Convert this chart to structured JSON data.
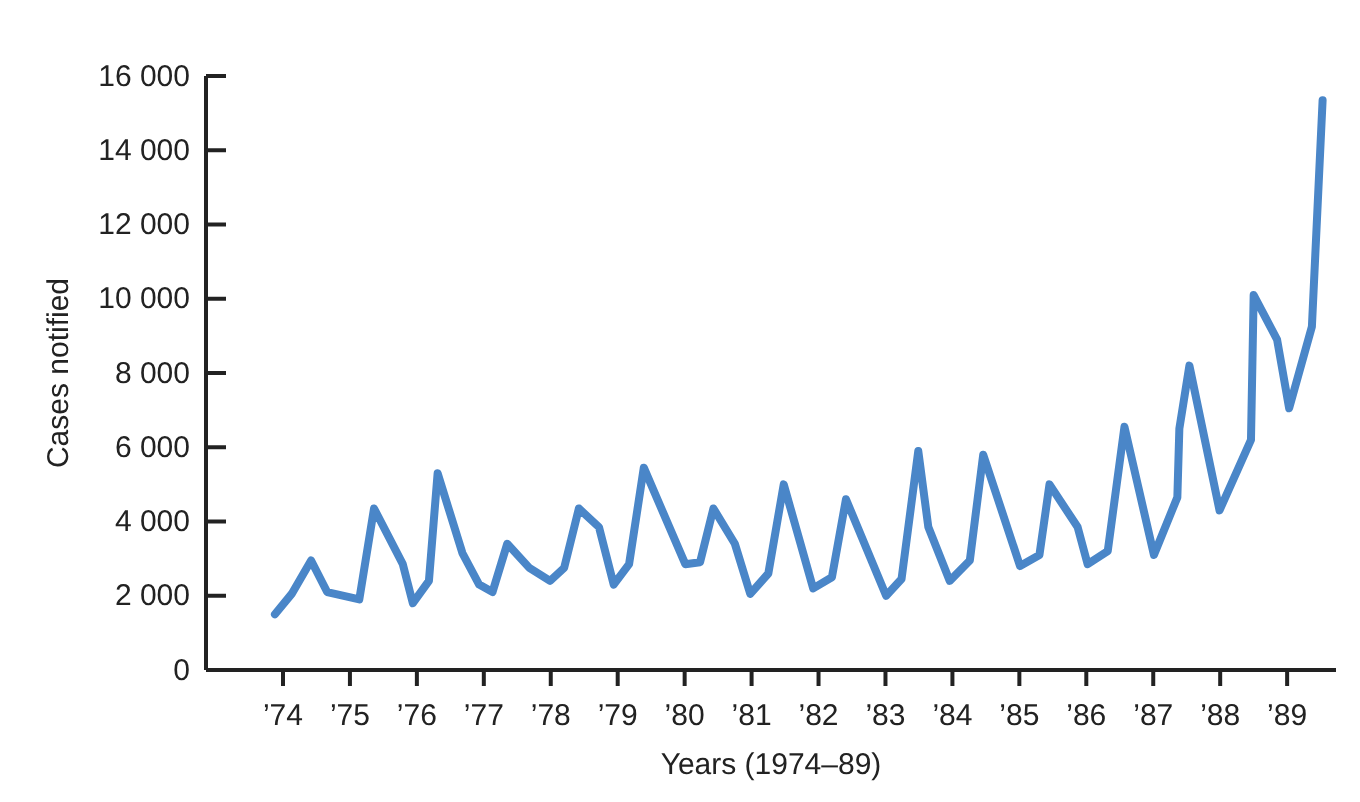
{
  "chart_data": {
    "type": "line",
    "xlabel": "Years (1974–89)",
    "ylabel": "Cases notified",
    "x": [
      1973.88,
      1974.13,
      1974.42,
      1974.66,
      1975.14,
      1975.36,
      1975.79,
      1975.94,
      1976.18,
      1976.31,
      1976.68,
      1976.93,
      1977.13,
      1977.35,
      1977.68,
      1977.99,
      1978.2,
      1978.42,
      1978.72,
      1978.94,
      1979.17,
      1979.39,
      1980.01,
      1980.23,
      1980.43,
      1980.75,
      1980.98,
      1981.25,
      1981.48,
      1981.92,
      1982.2,
      1982.41,
      1983.01,
      1983.24,
      1983.49,
      1983.64,
      1983.96,
      1984.26,
      1984.46,
      1985.01,
      1985.3,
      1985.45,
      1985.87,
      1986.02,
      1986.32,
      1986.57,
      1987.01,
      1987.36,
      1987.39,
      1987.54,
      1987.99,
      1988.46,
      1988.5,
      1988.85,
      1989.03,
      1989.37,
      1989.53
    ],
    "series": [
      {
        "color": "#4a86c8",
        "values": [
          1500,
          2050,
          2950,
          2100,
          1900,
          4350,
          2850,
          1800,
          2400,
          5300,
          3150,
          2300,
          2100,
          3400,
          2750,
          2400,
          2750,
          4350,
          3850,
          2300,
          2850,
          5450,
          2850,
          2900,
          4350,
          3400,
          2050,
          2600,
          5000,
          2200,
          2500,
          4600,
          2000,
          2450,
          5900,
          3850,
          2400,
          2950,
          5800,
          2800,
          3100,
          5000,
          3850,
          2850,
          3200,
          6550,
          3100,
          4650,
          6500,
          8200,
          4300,
          6200,
          10100,
          8900,
          7050,
          9250,
          15350
        ]
      }
    ],
    "xlim": [
      1972.85,
      1989.73
    ],
    "ylim": [
      0,
      16000
    ],
    "xticks": [
      {
        "value": 1974,
        "label": "’74"
      },
      {
        "value": 1975,
        "label": "’75"
      },
      {
        "value": 1976,
        "label": "’76"
      },
      {
        "value": 1977,
        "label": "’77"
      },
      {
        "value": 1978,
        "label": "’78"
      },
      {
        "value": 1979,
        "label": "’79"
      },
      {
        "value": 1980,
        "label": "’80"
      },
      {
        "value": 1981,
        "label": "’81"
      },
      {
        "value": 1982,
        "label": "’82"
      },
      {
        "value": 1983,
        "label": "’83"
      },
      {
        "value": 1984,
        "label": "’84"
      },
      {
        "value": 1985,
        "label": "’85"
      },
      {
        "value": 1986,
        "label": "’86"
      },
      {
        "value": 1987,
        "label": "’87"
      },
      {
        "value": 1988,
        "label": "’88"
      },
      {
        "value": 1989,
        "label": "’89"
      }
    ],
    "yticks": [
      0,
      {
        "value": 2000,
        "label": "2 000"
      },
      {
        "value": 4000,
        "label": "4 000"
      },
      {
        "value": 6000,
        "label": "6 000"
      },
      {
        "value": 8000,
        "label": "8 000"
      },
      {
        "value": 10000,
        "label": "10 000"
      },
      {
        "value": 12000,
        "label": "12 000"
      },
      {
        "value": 14000,
        "label": "14 000"
      },
      {
        "value": 16000,
        "label": "16 000"
      }
    ],
    "marker": "none",
    "line_style": "solid"
  }
}
